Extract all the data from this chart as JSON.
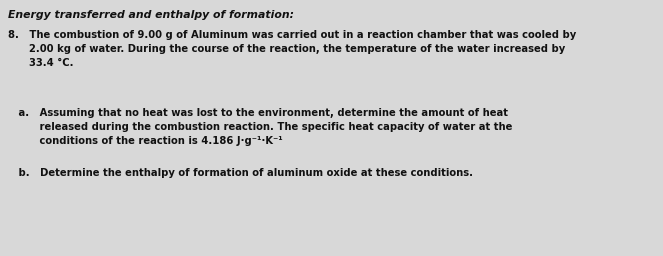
{
  "background_color": "#d8d8d8",
  "title": "Energy transferred and enthalpy of formation:",
  "line1": "8.   The combustion of 9.00 g of Aluminum was carried out in a reaction chamber that was cooled by",
  "line2": "      2.00 kg of water. During the course of the reaction, the temperature of the water increased by",
  "line3": "      33.4 °C.",
  "line4": "   a.   Assuming that no heat was lost to the environment, determine the amount of heat",
  "line5": "         released during the combustion reaction. The specific heat capacity of water at the",
  "line6": "         conditions of the reaction is 4.186 J·g⁻¹·K⁻¹",
  "line7": "   b.   Determine the enthalpy of formation of aluminum oxide at these conditions.",
  "font_size_title": 7.8,
  "font_size_body": 7.2,
  "text_color": "#111111"
}
